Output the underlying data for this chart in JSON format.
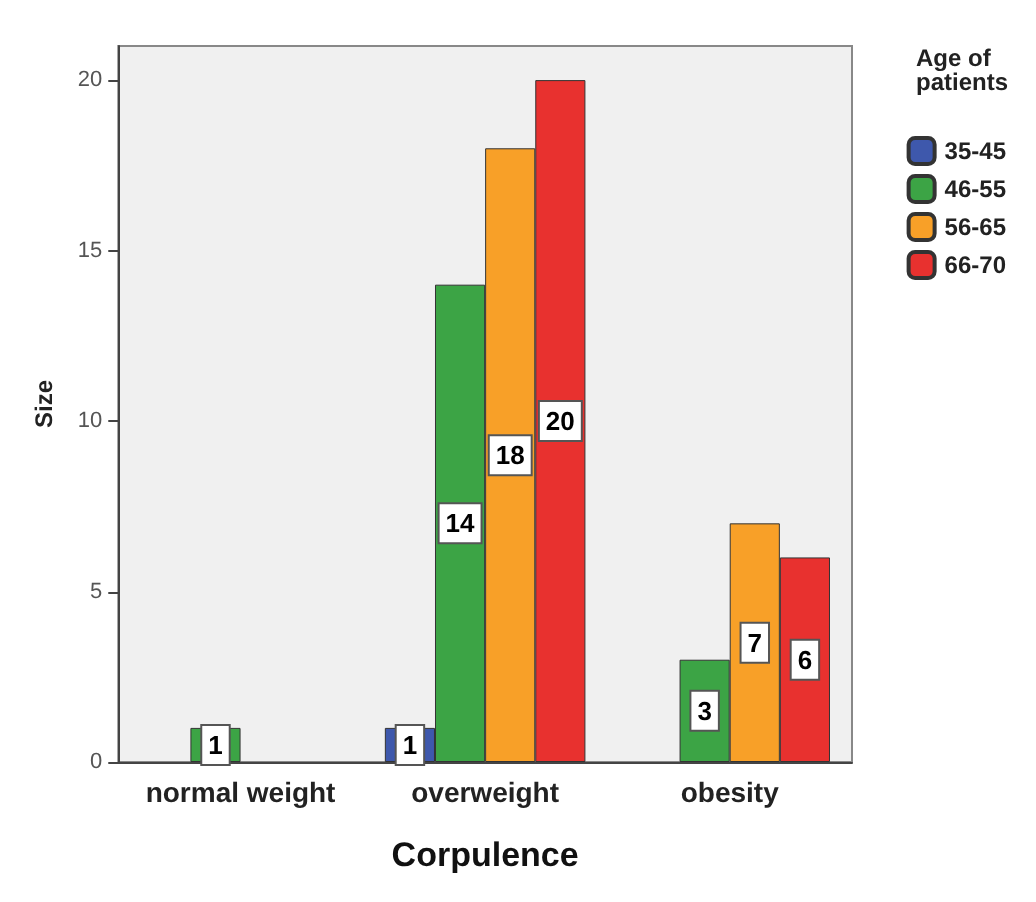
{
  "chart_data": {
    "type": "bar",
    "xlabel": "Corpulence",
    "ylabel": "Size",
    "legend_title": "Age of\npatients",
    "categories": [
      "normal weight",
      "overweight",
      "obesity"
    ],
    "series": [
      {
        "name": "35-45",
        "color": "#3e58ac",
        "values": [
          null,
          1,
          null
        ]
      },
      {
        "name": "46-55",
        "color": "#3ca445",
        "values": [
          1,
          14,
          3
        ]
      },
      {
        "name": "56-65",
        "color": "#f8a028",
        "values": [
          null,
          18,
          7
        ]
      },
      {
        "name": "66-70",
        "color": "#e8312f",
        "values": [
          null,
          20,
          6
        ]
      }
    ],
    "ylim": [
      0,
      21
    ],
    "yticks": [
      0,
      5,
      10,
      15,
      20
    ],
    "grid": false,
    "legend": "right",
    "data_labels": true
  }
}
